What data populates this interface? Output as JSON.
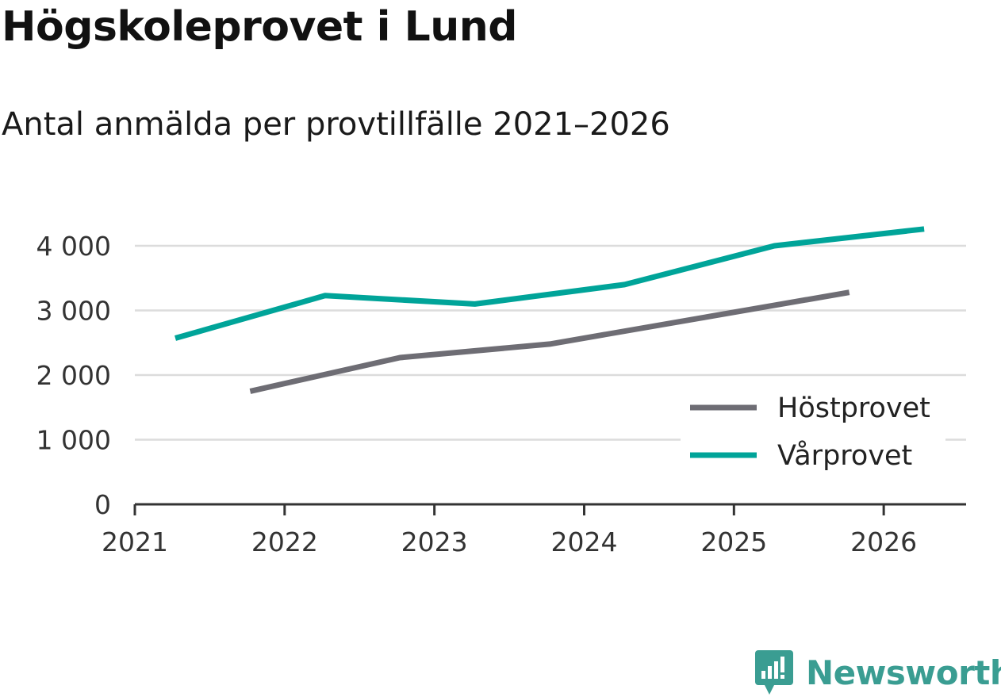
{
  "header": {
    "title": "Högskoleprovet i Lund",
    "subtitle": "Antal anmälda per provtillfälle 2021–2026"
  },
  "brand": {
    "name": "Newsworthy",
    "color": "#3a9d92"
  },
  "chart_data": {
    "type": "line",
    "title": "Högskoleprovet i Lund",
    "subtitle": "Antal anmälda per provtillfälle 2021–2026",
    "xlabel": "",
    "ylabel": "",
    "xlim": [
      2021,
      2026.55
    ],
    "ylim": [
      0,
      4000
    ],
    "x_ticks": [
      {
        "value": 2021,
        "label": "2021"
      },
      {
        "value": 2022,
        "label": "2022"
      },
      {
        "value": 2023,
        "label": "2023"
      },
      {
        "value": 2024,
        "label": "2024"
      },
      {
        "value": 2025,
        "label": "2025"
      },
      {
        "value": 2026,
        "label": "2026"
      }
    ],
    "y_ticks": [
      {
        "value": 0,
        "label": "0"
      },
      {
        "value": 1000,
        "label": "1 000"
      },
      {
        "value": 2000,
        "label": "2 000"
      },
      {
        "value": 3000,
        "label": "3 000"
      },
      {
        "value": 4000,
        "label": "4 000"
      }
    ],
    "grid": true,
    "legend_position": "bottom-right",
    "series": [
      {
        "name": "Höstprovet",
        "color": "#6e6d74",
        "x": [
          2021.77,
          2022.77,
          2023.77,
          2024.77,
          2025.77
        ],
        "values": [
          1750,
          2270,
          2480,
          2880,
          3280
        ]
      },
      {
        "name": "Vårprovet",
        "color": "#00a499",
        "x": [
          2021.27,
          2022.27,
          2023.27,
          2024.27,
          2025.27,
          2026.27
        ],
        "values": [
          2570,
          3230,
          3100,
          3400,
          4000,
          4260
        ]
      }
    ]
  }
}
